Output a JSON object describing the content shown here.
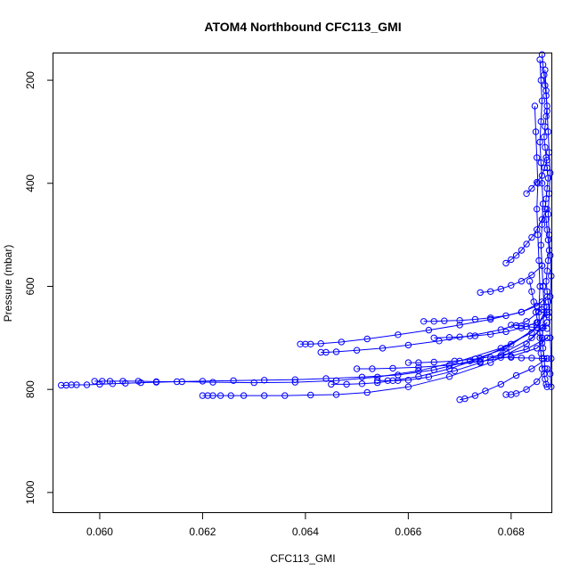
{
  "chart_data": {
    "type": "line",
    "title": "ATOM4 Northbound CFC113_GMI",
    "xlabel": "CFC113_GMI",
    "ylabel": "Pressure (mbar)",
    "xlim": [
      0.0591,
      0.0688
    ],
    "ylim": [
      1040,
      148
    ],
    "y_inverted": true,
    "x_ticks": [
      0.06,
      0.062,
      0.064,
      0.066,
      0.068
    ],
    "x_tick_labels": [
      "0.060",
      "0.062",
      "0.064",
      "0.066",
      "0.068"
    ],
    "y_ticks": [
      200,
      400,
      600,
      800,
      1000
    ],
    "y_tick_labels": [
      "200",
      "400",
      "600",
      "800",
      "1000"
    ],
    "marker": "open-circle",
    "color": "#0000ff",
    "grid": false,
    "series": [
      {
        "x": [
          0.05925,
          0.05935,
          0.05945,
          0.05955,
          0.05975,
          0.06,
          0.06025,
          0.0605,
          0.0608,
          0.0611,
          0.0615,
          0.062,
          0.0626,
          0.0632,
          0.0638,
          0.0644,
          0.0651,
          0.0658,
          0.0665,
          0.0672,
          0.0679,
          0.0685,
          0.0687
        ],
        "y": [
          792,
          792,
          791,
          791,
          791,
          790,
          789,
          788,
          787,
          786,
          785,
          784,
          783,
          782,
          781,
          779,
          776,
          772,
          762,
          745,
          720,
          680,
          640
        ]
      },
      {
        "x": [
          0.0599,
          0.06005,
          0.0602,
          0.06045,
          0.06075,
          0.0611,
          0.0616,
          0.0622,
          0.063,
          0.0638,
          0.0646,
          0.0654,
          0.0662,
          0.067,
          0.0678,
          0.0684,
          0.0687
        ],
        "y": [
          784,
          784,
          784,
          784,
          784,
          785,
          785,
          786,
          787,
          786,
          783,
          776,
          764,
          745,
          720,
          690,
          650
        ]
      },
      {
        "x": [
          0.062,
          0.0621,
          0.0622,
          0.06235,
          0.06255,
          0.0628,
          0.0632,
          0.0636,
          0.0641,
          0.0646,
          0.0652,
          0.066,
          0.0668,
          0.0676,
          0.0683,
          0.0687
        ],
        "y": [
          812,
          812,
          812,
          812,
          812,
          812,
          812,
          812,
          811,
          810,
          806,
          795,
          775,
          748,
          712,
          670
        ]
      },
      {
        "x": [
          0.0639,
          0.064,
          0.0641,
          0.0643,
          0.0647,
          0.0652,
          0.0658,
          0.0664,
          0.067,
          0.0676,
          0.0682,
          0.0686
        ],
        "y": [
          712,
          712,
          712,
          711,
          708,
          702,
          694,
          685,
          675,
          664,
          650,
          630
        ]
      },
      {
        "x": [
          0.0643,
          0.0644,
          0.0646,
          0.065,
          0.0655,
          0.066,
          0.0666,
          0.0672,
          0.0678,
          0.0683,
          0.0686
        ],
        "y": [
          728,
          728,
          727,
          724,
          720,
          714,
          706,
          696,
          684,
          668,
          645
        ]
      },
      {
        "x": [
          0.0645,
          0.0648,
          0.0651,
          0.0654,
          0.0657,
          0.0662,
          0.0668,
          0.0674,
          0.068,
          0.0685
        ],
        "y": [
          790,
          790,
          789,
          787,
          783,
          775,
          760,
          740,
          712,
          680
        ]
      },
      {
        "x": [
          0.0654,
          0.0656,
          0.0658,
          0.066,
          0.0664,
          0.0669,
          0.0674,
          0.0679,
          0.0684,
          0.0687
        ],
        "y": [
          783,
          783,
          783,
          782,
          776,
          764,
          748,
          727,
          700,
          670
        ]
      },
      {
        "x": [
          0.0663,
          0.0665,
          0.0667,
          0.067,
          0.0673,
          0.0676,
          0.0679,
          0.0682,
          0.0685,
          0.0687
        ],
        "y": [
          668,
          668,
          667,
          666,
          664,
          661,
          657,
          650,
          638,
          620
        ]
      },
      {
        "x": [
          0.0665,
          0.0668,
          0.067,
          0.0673,
          0.0676,
          0.0679,
          0.0682,
          0.0685,
          0.0687
        ],
        "y": [
          700,
          699,
          698,
          696,
          693,
          688,
          681,
          670,
          655
        ]
      },
      {
        "x": [
          0.0674,
          0.0676,
          0.0678,
          0.068,
          0.0682,
          0.0684,
          0.0686
        ],
        "y": [
          612,
          610,
          605,
          598,
          590,
          578,
          560
        ]
      },
      {
        "x": [
          0.0679,
          0.068,
          0.0681,
          0.0682,
          0.0683,
          0.0684,
          0.0685,
          0.0686,
          0.0687
        ],
        "y": [
          555,
          548,
          540,
          530,
          518,
          505,
          490,
          470,
          450
        ]
      },
      {
        "x": [
          0.0683,
          0.0684,
          0.0685,
          0.0686,
          0.06865,
          0.0687
        ],
        "y": [
          420,
          410,
          398,
          385,
          370,
          355
        ]
      },
      {
        "x": [
          0.067,
          0.0671,
          0.0673,
          0.0675,
          0.0678,
          0.0681,
          0.0684,
          0.0687
        ],
        "y": [
          820,
          818,
          812,
          803,
          790,
          773,
          760,
          740
        ]
      },
      {
        "x": [
          0.0679,
          0.068,
          0.0681,
          0.0683,
          0.0685,
          0.0687
        ],
        "y": [
          810,
          810,
          808,
          800,
          785,
          760
        ]
      },
      {
        "x": [
          0.066,
          0.0662,
          0.0665,
          0.0669,
          0.0673,
          0.0678,
          0.0683,
          0.0687
        ],
        "y": [
          748,
          748,
          747,
          745,
          741,
          734,
          722,
          700
        ]
      },
      {
        "x": [
          0.065,
          0.0653,
          0.0657,
          0.0662,
          0.0668,
          0.0674,
          0.068,
          0.0685,
          0.0687
        ],
        "y": [
          760,
          760,
          759,
          757,
          753,
          746,
          736,
          720,
          700
        ]
      },
      {
        "x": [
          0.0686,
          0.06862,
          0.06864,
          0.06866,
          0.06868,
          0.0687,
          0.06868,
          0.06866,
          0.06864,
          0.06866,
          0.06868,
          0.0687,
          0.06872,
          0.0687,
          0.06868,
          0.06866,
          0.06868,
          0.0687,
          0.06872,
          0.06874,
          0.06872,
          0.0687,
          0.06868,
          0.0687,
          0.06872,
          0.06874
        ],
        "y": [
          150,
          170,
          190,
          210,
          230,
          250,
          270,
          290,
          310,
          330,
          350,
          370,
          390,
          410,
          430,
          450,
          470,
          490,
          510,
          530,
          550,
          570,
          590,
          610,
          630,
          650
        ]
      },
      {
        "x": [
          0.06856,
          0.06858,
          0.0686,
          0.06858,
          0.06856,
          0.06858,
          0.0686,
          0.06862,
          0.0686,
          0.06858,
          0.0686,
          0.06862,
          0.06864,
          0.06862,
          0.0686,
          0.06862,
          0.06864,
          0.06866,
          0.06864,
          0.06866,
          0.06868,
          0.0687
        ],
        "y": [
          160,
          200,
          240,
          280,
          320,
          360,
          400,
          440,
          480,
          520,
          560,
          600,
          640,
          680,
          700,
          720,
          740,
          760,
          770,
          780,
          790,
          795
        ]
      },
      {
        "x": [
          0.06866,
          0.06868,
          0.0687,
          0.06872,
          0.06874,
          0.06876,
          0.06874,
          0.06872,
          0.06874,
          0.06876,
          0.06878,
          0.06876,
          0.06874,
          0.06876,
          0.06878,
          0.06876,
          0.06878
        ],
        "y": [
          180,
          220,
          260,
          300,
          340,
          380,
          420,
          460,
          500,
          540,
          580,
          620,
          660,
          700,
          740,
          770,
          795
        ]
      },
      {
        "x": [
          0.06846,
          0.06848,
          0.0685,
          0.06852,
          0.0685,
          0.06852,
          0.06854,
          0.06856,
          0.06854,
          0.06856,
          0.06858,
          0.0686
        ],
        "y": [
          250,
          300,
          350,
          400,
          450,
          500,
          550,
          600,
          650,
          700,
          730,
          760
        ]
      },
      {
        "x": [
          0.06836,
          0.0684,
          0.06844,
          0.06848,
          0.06852,
          0.06856,
          0.0686
        ],
        "y": [
          590,
          610,
          630,
          650,
          670,
          690,
          710
        ]
      },
      {
        "x": [
          0.068,
          0.0681,
          0.0682,
          0.0683,
          0.0684,
          0.0685,
          0.0686,
          0.0687
        ],
        "y": [
          675,
          676,
          677,
          678,
          679,
          680,
          681,
          682
        ]
      },
      {
        "x": [
          0.0676,
          0.0678,
          0.068,
          0.0682,
          0.0684,
          0.0686,
          0.0687
        ],
        "y": [
          738,
          738,
          738,
          739,
          739,
          740,
          740
        ]
      }
    ]
  }
}
